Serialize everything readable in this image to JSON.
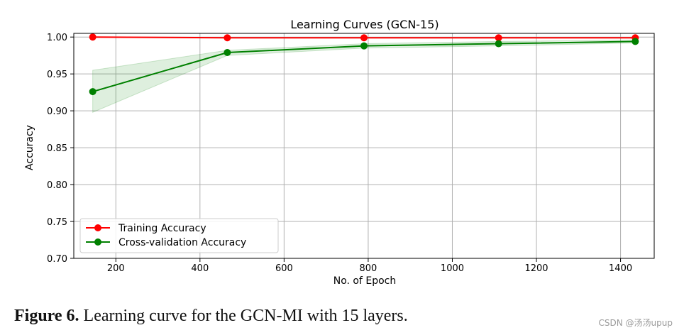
{
  "chart_data": {
    "type": "line",
    "title": "Learning Curves (GCN-15)",
    "xlabel": "No. of Epoch",
    "ylabel": "Accuracy",
    "xlim": [
      100,
      1480
    ],
    "ylim": [
      0.7,
      1.005
    ],
    "xticks": [
      200,
      400,
      600,
      800,
      1000,
      1200,
      1400
    ],
    "yticks": [
      "0.70",
      "0.75",
      "0.80",
      "0.85",
      "0.90",
      "0.95",
      "1.00"
    ],
    "grid": true,
    "legend_position": "lower-left",
    "x": [
      145,
      465,
      790,
      1110,
      1435
    ],
    "series": [
      {
        "name": "Training Accuracy",
        "color": "#ff0000",
        "values": [
          1.0,
          0.999,
          0.999,
          0.999,
          0.999
        ]
      },
      {
        "name": "Cross-validation Accuracy",
        "color": "#008000",
        "values": [
          0.926,
          0.979,
          0.988,
          0.991,
          0.994
        ],
        "band_lower": [
          0.898,
          0.975,
          0.985,
          0.988,
          0.992
        ],
        "band_upper": [
          0.955,
          0.982,
          0.991,
          0.994,
          0.996
        ],
        "band_color": "#008000"
      }
    ]
  },
  "caption": {
    "label": "Figure 6.",
    "text": " Learning curve for the GCN-MI with 15 layers."
  },
  "watermark": "CSDN @汤汤upup"
}
